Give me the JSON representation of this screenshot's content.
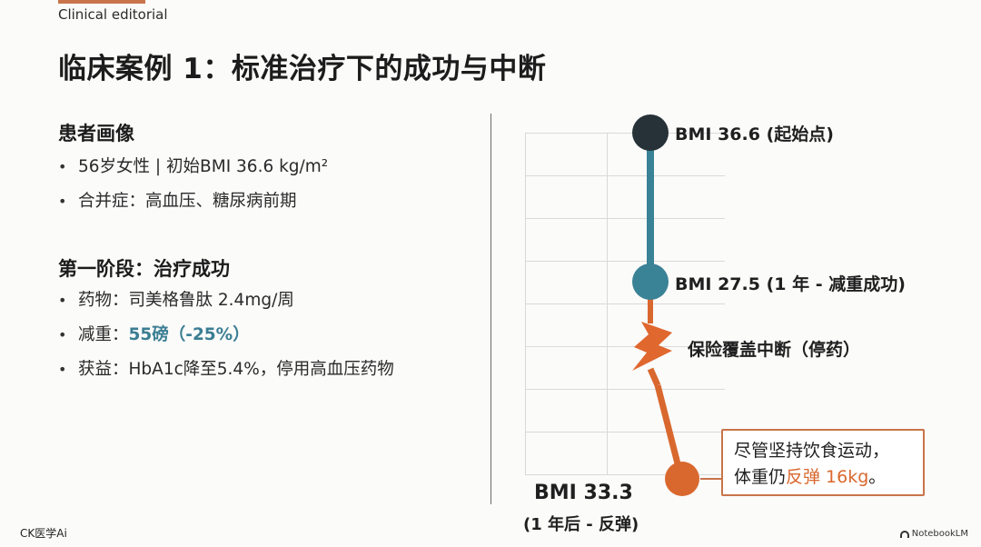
{
  "header": {
    "brand": "Clinical editorial",
    "title": "临床案例 1：标准治疗下的成功与中断"
  },
  "patient_profile": {
    "heading": "患者画像",
    "items": [
      {
        "text": "56岁女性 | 初始BMI 36.6 kg/m²"
      },
      {
        "text": "合并症：高血压、糖尿病前期"
      }
    ]
  },
  "phase_one": {
    "heading": "第一阶段：治疗成功",
    "items": [
      {
        "prefix": "药物：",
        "value": "司美格鲁肽 2.4mg/周"
      },
      {
        "prefix": "减重：",
        "value": "55磅（-25%）"
      },
      {
        "prefix": "获益：",
        "value": "HbA1c降至5.4%，停用高血压药物"
      }
    ]
  },
  "timeline": {
    "start_label": "BMI 36.6 (起始点)",
    "mid_label": "BMI 27.5 (1 年 - 减重成功)",
    "break_label": "保险覆盖中断（停药）",
    "end_label": "BMI 33.3",
    "end_sublabel": "(1 年后 - 反弹)",
    "callout_line1": "尽管坚持饮食运动，",
    "callout_line2_prefix": "体重仍",
    "callout_line2_highlight": "反弹 16kg",
    "callout_line2_suffix": "。",
    "colors": {
      "start": "#263238",
      "mid": "#3a8296",
      "break": "#e0672e",
      "end": "#d9682e"
    }
  },
  "footer": {
    "left": "CK医学Ai",
    "right": "NotebookLM"
  }
}
